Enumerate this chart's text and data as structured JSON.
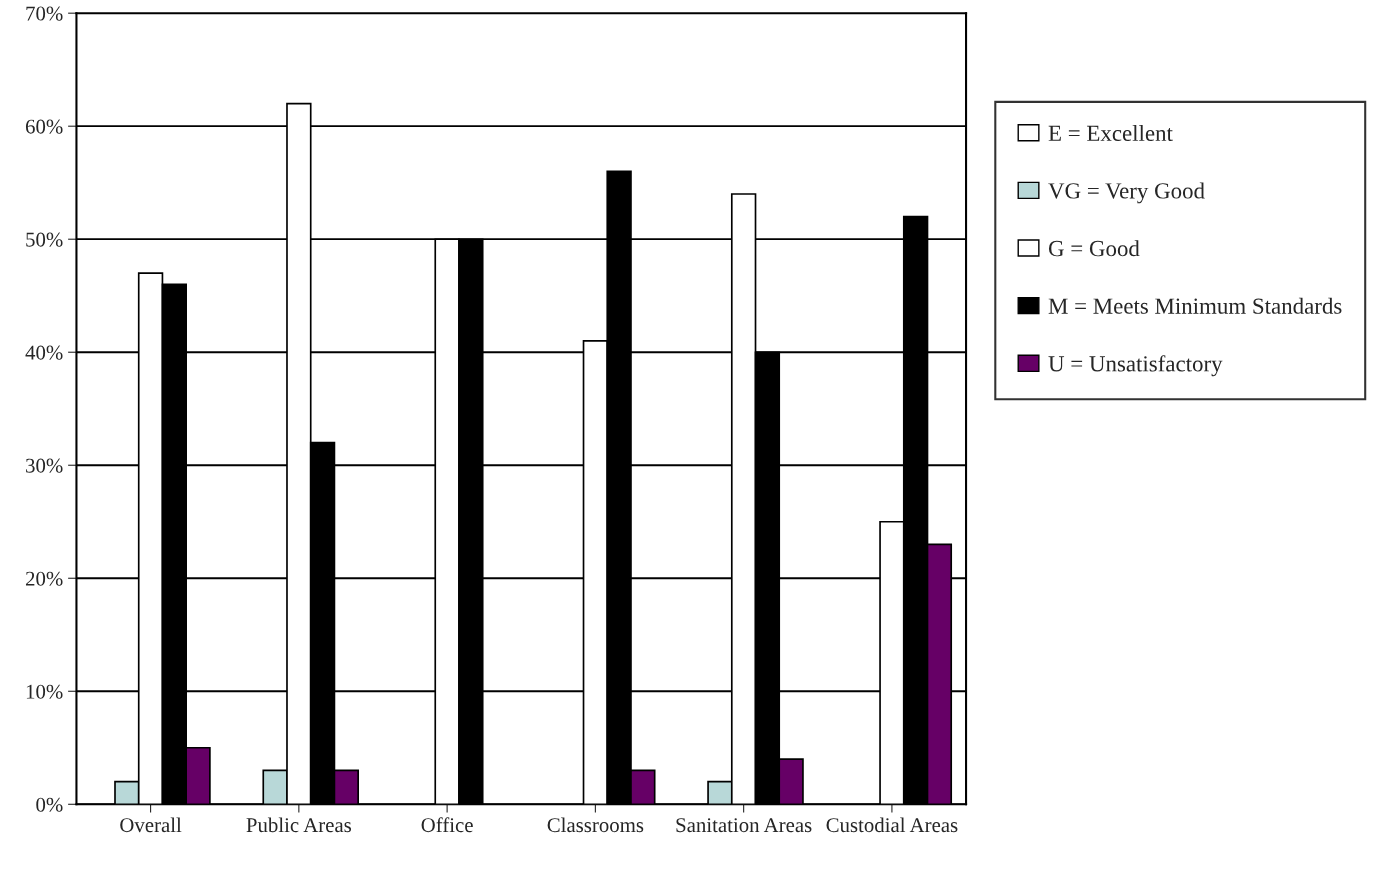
{
  "chart_data": {
    "type": "bar",
    "categories": [
      "Overall",
      "Public Areas",
      "Office",
      "Classrooms",
      "Sanitation Areas",
      "Custodial Areas"
    ],
    "series": [
      {
        "name": "E = Excellent",
        "color": "#ffffff",
        "values": [
          0,
          0,
          0,
          0,
          0,
          0
        ]
      },
      {
        "name": "VG = Very Good",
        "color": "#b8d8d8",
        "values": [
          2,
          3,
          0,
          0,
          2,
          0
        ]
      },
      {
        "name": "G = Good",
        "color": "#ffffff",
        "values": [
          47,
          62,
          50,
          41,
          54,
          25
        ]
      },
      {
        "name": "M = Meets Minimum Standards",
        "color": "#000000",
        "values": [
          46,
          32,
          50,
          56,
          40,
          52
        ]
      },
      {
        "name": "U = Unsatisfactory",
        "color": "#660066",
        "values": [
          5,
          3,
          0,
          3,
          4,
          23
        ]
      }
    ],
    "ylim": [
      0,
      70
    ],
    "yticks": [
      {
        "value": 0,
        "label": "0%"
      },
      {
        "value": 10,
        "label": "10%"
      },
      {
        "value": 20,
        "label": "20%"
      },
      {
        "value": 30,
        "label": "30%"
      },
      {
        "value": 40,
        "label": "40%"
      },
      {
        "value": 50,
        "label": "50%"
      },
      {
        "value": 60,
        "label": "60%"
      },
      {
        "value": 70,
        "label": "70%"
      }
    ],
    "grid": "y",
    "legend": "right"
  }
}
